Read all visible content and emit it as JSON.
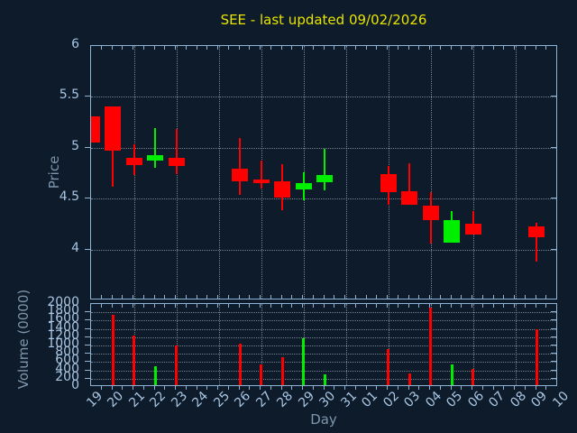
{
  "header": {
    "title": "SEE - last updated 09/02/2026"
  },
  "colors": {
    "background": "#0d1b2a",
    "spine": "#8fb3d4",
    "tick_label": "#a9c6e4",
    "axis_label": "#7e95ac",
    "title": "#e8e400",
    "grid": "#c0cad6",
    "up": "#00ee00",
    "down": "#ff0000"
  },
  "chart_data": {
    "type": "candlestick_with_volume",
    "title": "SEE - last updated 09/02/2026",
    "xlabel": "Day",
    "price_ylabel": "Price",
    "volume_ylabel": "Volume (0000)",
    "price_ylim": [
      3.5,
      6.0
    ],
    "price_tick_labels": [
      "6",
      "5.5",
      "5",
      "4.5",
      "4"
    ],
    "price_tick_values": [
      6,
      5.5,
      5,
      4.5,
      4
    ],
    "price_gridlines": [
      5.5,
      5.0,
      4.5,
      4.0
    ],
    "volume_ylim": [
      0,
      2000
    ],
    "volume_tick_labels": [
      "2000",
      "1800",
      "1600",
      "1400",
      "1200",
      "1000",
      "800",
      "600",
      "400",
      "200",
      "0"
    ],
    "volume_tick_values": [
      2000,
      1800,
      1600,
      1400,
      1200,
      1000,
      800,
      600,
      400,
      200,
      0
    ],
    "grid": "dotted; vertical gridline every 2 days; legend none",
    "x_categories": [
      "19",
      "20",
      "21",
      "22",
      "23",
      "24",
      "25",
      "26",
      "27",
      "28",
      "29",
      "30",
      "31",
      "01",
      "02",
      "03",
      "04",
      "05",
      "06",
      "07",
      "08",
      "09",
      "10"
    ],
    "candles": [
      {
        "day": "19",
        "open": 5.31,
        "high": 5.31,
        "low": 5.05,
        "close": 5.05,
        "volume": null
      },
      {
        "day": "20",
        "open": 5.41,
        "high": 5.41,
        "low": 4.62,
        "close": 4.97,
        "volume": 1730
      },
      {
        "day": "21",
        "open": 4.9,
        "high": 5.03,
        "low": 4.73,
        "close": 4.83,
        "volume": 1230
      },
      {
        "day": "22",
        "open": 4.87,
        "high": 5.19,
        "low": 4.8,
        "close": 4.93,
        "volume": 490
      },
      {
        "day": "23",
        "open": 4.9,
        "high": 5.18,
        "low": 4.74,
        "close": 4.82,
        "volume": 1000
      },
      {
        "day": "26",
        "open": 4.79,
        "high": 5.1,
        "low": 4.54,
        "close": 4.67,
        "volume": 1050
      },
      {
        "day": "27",
        "open": 4.69,
        "high": 4.87,
        "low": 4.6,
        "close": 4.65,
        "volume": 550
      },
      {
        "day": "28",
        "open": 4.67,
        "high": 4.84,
        "low": 4.39,
        "close": 4.51,
        "volume": 720
      },
      {
        "day": "29",
        "open": 4.59,
        "high": 4.76,
        "low": 4.48,
        "close": 4.65,
        "volume": 1170
      },
      {
        "day": "30",
        "open": 4.66,
        "high": 4.99,
        "low": 4.58,
        "close": 4.73,
        "volume": 300
      },
      {
        "day": "02",
        "open": 4.74,
        "high": 4.82,
        "low": 4.44,
        "close": 4.56,
        "volume": 920
      },
      {
        "day": "03",
        "open": 4.57,
        "high": 4.85,
        "low": 4.44,
        "close": 4.44,
        "volume": 320
      },
      {
        "day": "04",
        "open": 4.43,
        "high": 4.56,
        "low": 4.06,
        "close": 4.29,
        "volume": 1920
      },
      {
        "day": "05",
        "open": 4.07,
        "high": 4.38,
        "low": 4.07,
        "close": 4.29,
        "volume": 550
      },
      {
        "day": "06",
        "open": 4.25,
        "high": 4.38,
        "low": 4.15,
        "close": 4.15,
        "volume": 430
      },
      {
        "day": "09",
        "open": 4.23,
        "high": 4.26,
        "low": 3.88,
        "close": 4.12,
        "volume": 1400
      }
    ]
  }
}
